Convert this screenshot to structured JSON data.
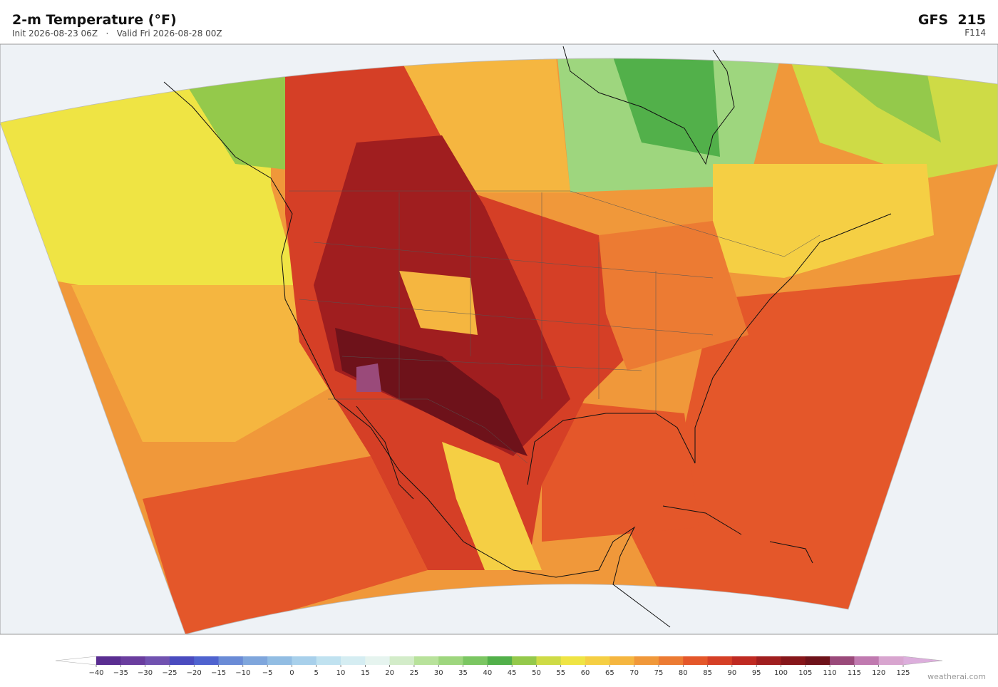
{
  "header": {
    "title": "2-m Temperature  (°F)",
    "subtitle": "Init 2026-08-23 06Z   ·   Valid Fri 2026-08-28 00Z",
    "model": "GFS  215",
    "forecast_hour": "F114"
  },
  "colorbar": {
    "ticks": [
      {
        "value": -40,
        "label": "−40"
      },
      {
        "value": -35,
        "label": "−35"
      },
      {
        "value": -30,
        "label": "−30"
      },
      {
        "value": -25,
        "label": "−25"
      },
      {
        "value": -20,
        "label": "−20"
      },
      {
        "value": -15,
        "label": "−15"
      },
      {
        "value": -10,
        "label": "−10"
      },
      {
        "value": -5,
        "label": "−5"
      },
      0,
      5,
      10,
      15,
      20,
      25,
      30,
      35,
      40,
      45,
      50,
      55,
      60,
      65,
      70,
      75,
      80,
      85,
      90,
      95,
      100,
      105,
      110,
      115,
      120,
      125
    ],
    "colors": [
      "#5a2d91",
      "#6a3d9e",
      "#7152b0",
      "#4a4bbf",
      "#4f63cf",
      "#6a8bd6",
      "#7fa6dc",
      "#92bde3",
      "#a8d0eb",
      "#c0e2f0",
      "#d5edf2",
      "#e6f4ef",
      "#d3ecc9",
      "#b8e29b",
      "#9ed67e",
      "#7bc662",
      "#52b04a",
      "#94c94b",
      "#cedb46",
      "#efe444",
      "#f5cf44",
      "#f5b640",
      "#f0983a",
      "#ec7b33",
      "#e4572a",
      "#d53f26",
      "#bf2a22",
      "#a01e1f",
      "#86161a",
      "#6e121a",
      "#9a4a7a",
      "#c07ab0",
      "#d8a5cf"
    ],
    "under_color": "#ffffff",
    "over_color": "#dcaedc"
  },
  "footer": {
    "watermark": "weatherai.com"
  }
}
